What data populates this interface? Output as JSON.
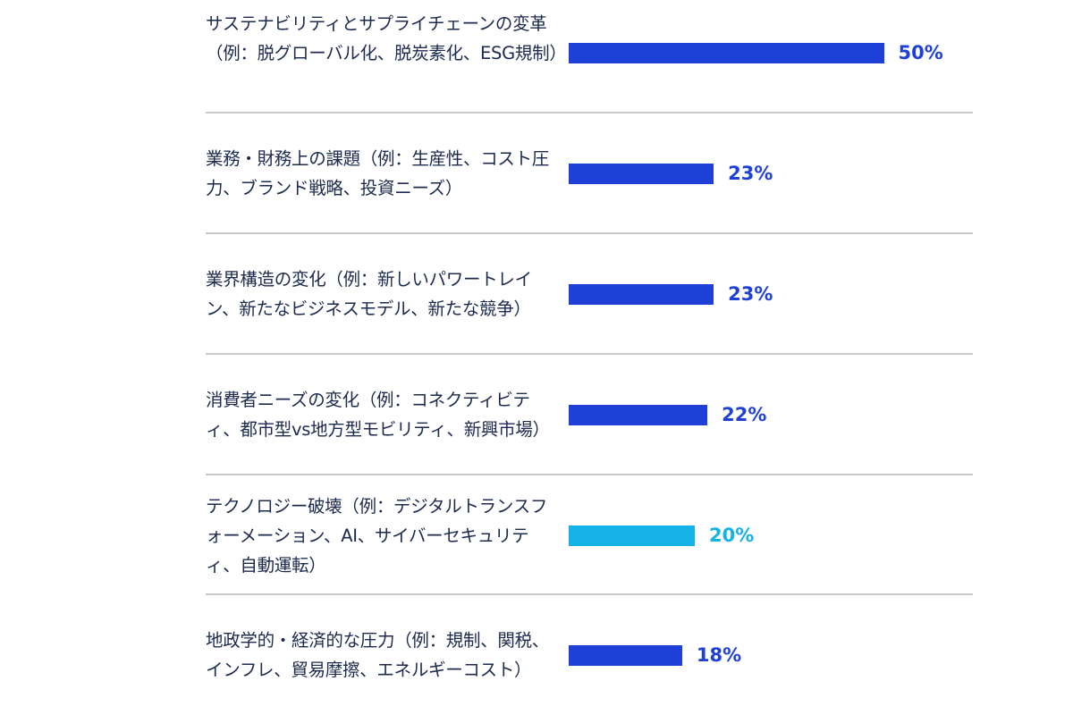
{
  "chart_data": {
    "type": "bar",
    "orientation": "horizontal",
    "categories": [
      "サステナビリティとサプライチェーンの変革（例：脱グローバル化、脱炭素化、ESG規制）",
      "業務・財務上の課題（例：生産性、コスト圧力、ブランド戦略、投資ニーズ）",
      "業界構造の変化（例：新しいパワートレイン、新たなビジネスモデル、新たな競争）",
      "消費者ニーズの変化（例：コネクティビティ、都市型vs地方型モビリティ、新興市場）",
      "テクノロジー破壊（例：デジタルトランスフォーメーション、AI、サイバーセキュリティ、自動運転）",
      "地政学的・経済的な圧力（例：規制、関税、インフレ、貿易摩擦、エネルギーコスト）"
    ],
    "values": [
      50,
      23,
      23,
      22,
      20,
      18
    ],
    "value_labels": [
      "50%",
      "23%",
      "23%",
      "22%",
      "20%",
      "18%"
    ],
    "highlighted": [
      false,
      false,
      false,
      false,
      true,
      false
    ],
    "unit": "%",
    "grid": false,
    "colors": {
      "bar": "#1f40d6",
      "highlight": "#14b2e6",
      "label": "#1c2b4d",
      "separator": "#c8c8c8"
    }
  }
}
